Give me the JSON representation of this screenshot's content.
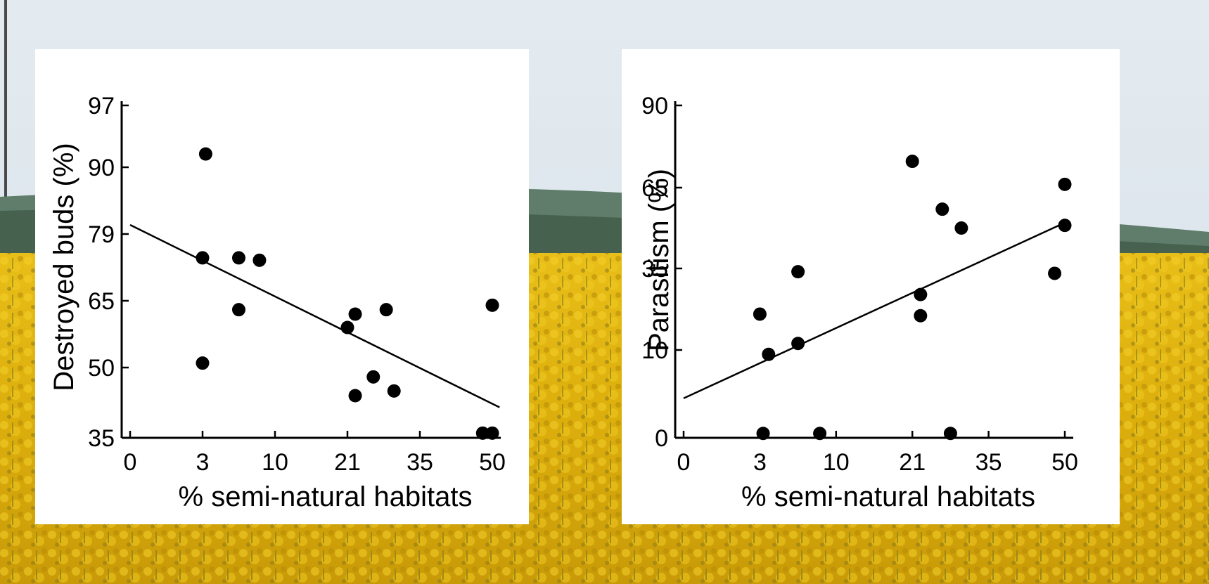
{
  "background": {
    "sky_color": "#dfe8ef",
    "hill_color": "#5d7a6a",
    "field_color": "#e2b410"
  },
  "chart_data": [
    {
      "type": "scatter",
      "title": "",
      "xlabel": "% semi-natural habitats",
      "ylabel": "Destroyed buds (%)",
      "x_ticks": [
        "0",
        "3",
        "10",
        "21",
        "35",
        "50"
      ],
      "y_ticks": [
        "35",
        "50",
        "65",
        "79",
        "90",
        "97"
      ],
      "x_tick_positions": [
        0,
        1,
        2,
        3,
        4,
        5
      ],
      "y_tick_positions": [
        0,
        1,
        2,
        3,
        4,
        5
      ],
      "points": [
        {
          "x": 3,
          "y": 51
        },
        {
          "x": 3,
          "y": 74
        },
        {
          "x": 3.3,
          "y": 91.5
        },
        {
          "x": 6.5,
          "y": 74
        },
        {
          "x": 6.5,
          "y": 63
        },
        {
          "x": 8.5,
          "y": 73.5
        },
        {
          "x": 21,
          "y": 59
        },
        {
          "x": 22.5,
          "y": 44
        },
        {
          "x": 22.5,
          "y": 62
        },
        {
          "x": 26,
          "y": 48
        },
        {
          "x": 28.5,
          "y": 63
        },
        {
          "x": 30,
          "y": 45
        },
        {
          "x": 48,
          "y": 36
        },
        {
          "x": 50,
          "y": 36
        },
        {
          "x": 50,
          "y": 64
        }
      ],
      "trend_line": [
        {
          "x": 0,
          "y": 80.5
        },
        {
          "x": 51.5,
          "y": 41.5
        }
      ],
      "grid": false,
      "marker_color": "#000000"
    },
    {
      "type": "scatter",
      "title": "",
      "xlabel": "% semi-natural habitats",
      "ylabel": "Parasitism (%)",
      "x_ticks": [
        "0",
        "3",
        "10",
        "21",
        "35",
        "50"
      ],
      "y_ticks": [
        "0",
        "10",
        "35",
        "65",
        "90"
      ],
      "x_tick_positions": [
        0,
        1,
        2,
        3,
        4,
        5
      ],
      "y_tick_positions": [
        0,
        1,
        2,
        3,
        4
      ],
      "points": [
        {
          "x": 3,
          "y": 21
        },
        {
          "x": 3.3,
          "y": 0.5
        },
        {
          "x": 3.8,
          "y": 9.5
        },
        {
          "x": 6.5,
          "y": 34
        },
        {
          "x": 6.5,
          "y": 12
        },
        {
          "x": 8.5,
          "y": 0.5
        },
        {
          "x": 21,
          "y": 73
        },
        {
          "x": 22.5,
          "y": 27
        },
        {
          "x": 22.5,
          "y": 20.5
        },
        {
          "x": 26.5,
          "y": 57
        },
        {
          "x": 28,
          "y": 0.5
        },
        {
          "x": 30,
          "y": 50
        },
        {
          "x": 48,
          "y": 33.5
        },
        {
          "x": 50,
          "y": 66
        },
        {
          "x": 50,
          "y": 51
        }
      ],
      "trend_line": [
        {
          "x": 0,
          "y": 4.5
        },
        {
          "x": 50,
          "y": 52
        }
      ],
      "grid": false,
      "marker_color": "#000000"
    }
  ]
}
